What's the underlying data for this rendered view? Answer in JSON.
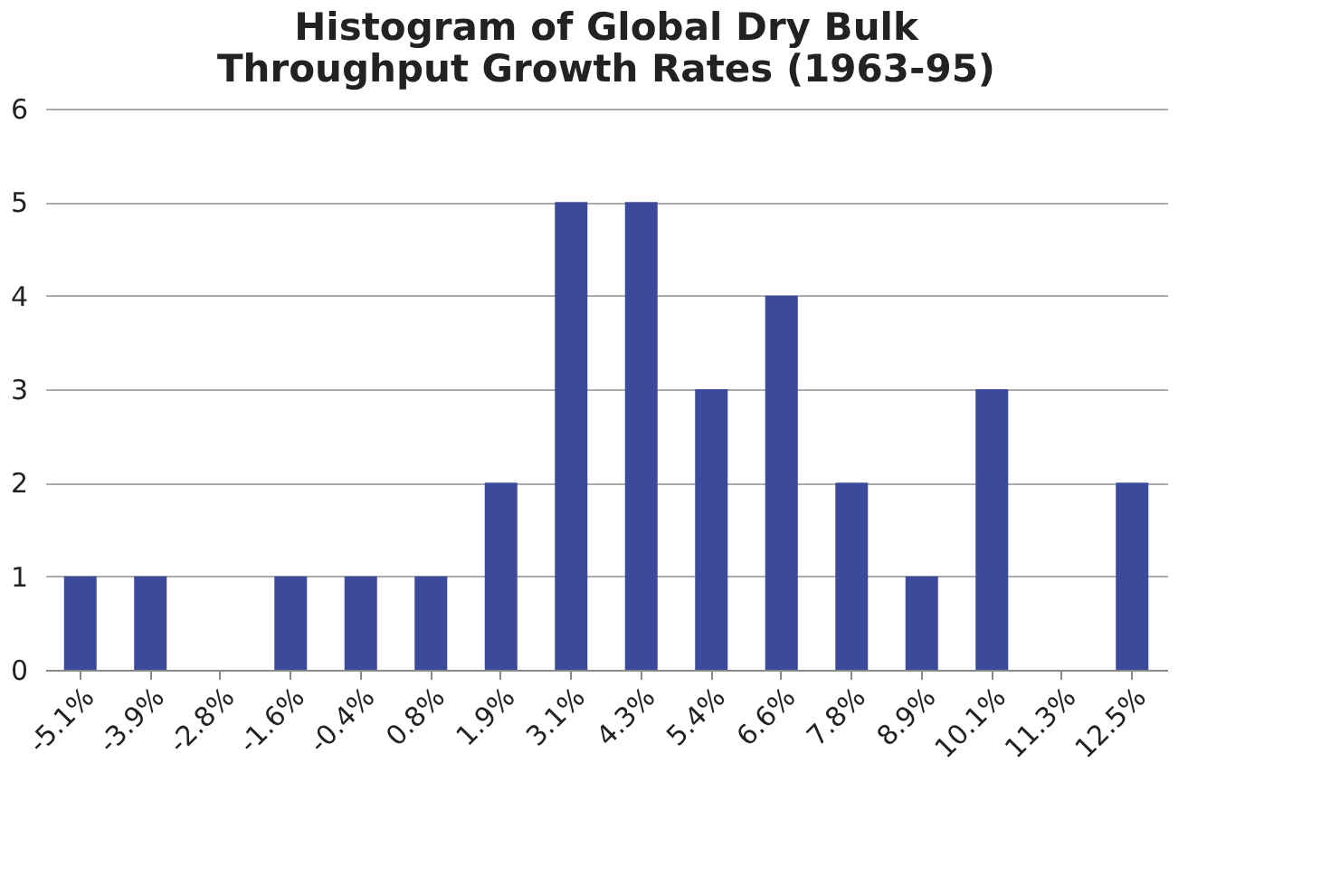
{
  "chart_data": {
    "type": "bar",
    "title": [
      "Histogram of Global Dry Bulk",
      "Throughput Growth Rates (1963-95)"
    ],
    "categories": [
      "-5.1%",
      "-3.9%",
      "-2.8%",
      "-1.6%",
      "-0.4%",
      "0.8%",
      "1.9%",
      "3.1%",
      "4.3%",
      "5.4%",
      "6.6%",
      "7.8%",
      "8.9%",
      "10.1%",
      "11.3%",
      "12.5%"
    ],
    "values": [
      1,
      1,
      0,
      1,
      1,
      1,
      2,
      5,
      5,
      3,
      4,
      2,
      1,
      3,
      0,
      2
    ],
    "color": "#3b4a9b",
    "ylim": [
      0,
      6
    ],
    "yticks": [
      0,
      1,
      2,
      3,
      4,
      5,
      6
    ],
    "grid": "y"
  }
}
